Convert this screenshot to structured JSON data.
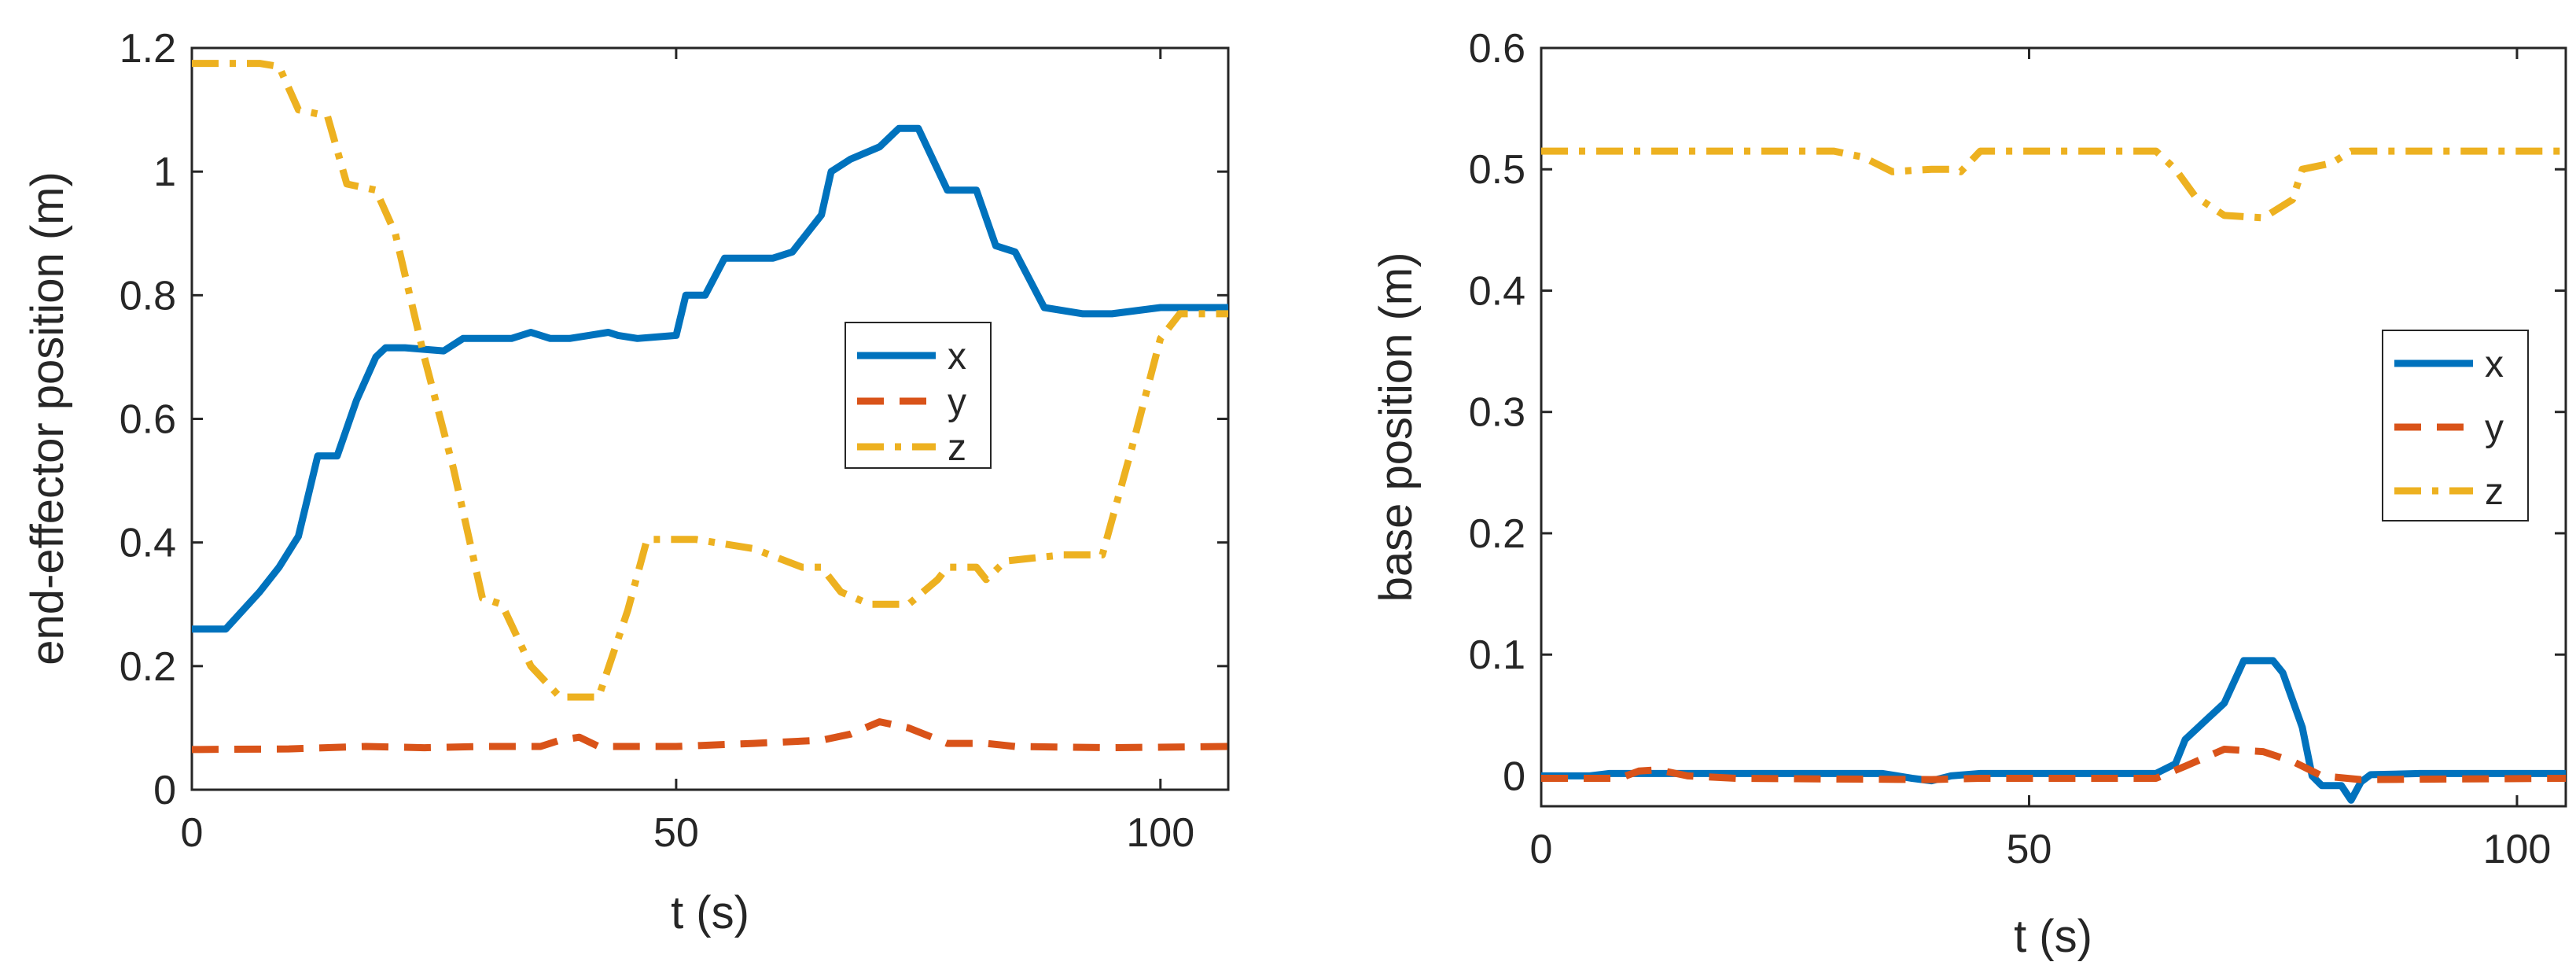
{
  "chart_data": [
    {
      "id": "left",
      "type": "line",
      "xlabel": "t (s)",
      "ylabel": "end-effector position (m)",
      "xlim": [
        0,
        107
      ],
      "ylim": [
        0,
        1.2
      ],
      "xticks": [
        0,
        50,
        100
      ],
      "xtick_labels": [
        "0",
        "50",
        "100"
      ],
      "yticks": [
        0,
        0.2,
        0.4,
        0.6,
        0.8,
        1,
        1.2
      ],
      "ytick_labels": [
        "0",
        "0.2",
        "0.4",
        "0.6",
        "0.8",
        "1",
        "1.2"
      ],
      "legend_position": "center-right",
      "series": [
        {
          "name": "x",
          "color": "#0072BD",
          "dash": "solid",
          "points": [
            [
              0,
              0.26
            ],
            [
              3.5,
              0.26
            ],
            [
              7,
              0.32
            ],
            [
              9,
              0.36
            ],
            [
              11,
              0.41
            ],
            [
              13,
              0.54
            ],
            [
              15,
              0.54
            ],
            [
              17,
              0.63
            ],
            [
              19,
              0.7
            ],
            [
              20,
              0.715
            ],
            [
              22,
              0.715
            ],
            [
              26,
              0.71
            ],
            [
              28,
              0.73
            ],
            [
              33,
              0.73
            ],
            [
              35,
              0.74
            ],
            [
              37,
              0.73
            ],
            [
              39,
              0.73
            ],
            [
              41,
              0.735
            ],
            [
              43,
              0.74
            ],
            [
              44,
              0.735
            ],
            [
              46,
              0.73
            ],
            [
              50,
              0.735
            ],
            [
              51,
              0.8
            ],
            [
              53,
              0.8
            ],
            [
              55,
              0.86
            ],
            [
              60,
              0.86
            ],
            [
              62,
              0.87
            ],
            [
              65,
              0.93
            ],
            [
              66,
              1.0
            ],
            [
              68,
              1.02
            ],
            [
              71,
              1.04
            ],
            [
              73,
              1.07
            ],
            [
              75,
              1.07
            ],
            [
              78,
              0.97
            ],
            [
              81,
              0.97
            ],
            [
              83,
              0.88
            ],
            [
              85,
              0.87
            ],
            [
              88,
              0.78
            ],
            [
              92,
              0.77
            ],
            [
              95,
              0.77
            ],
            [
              100,
              0.78
            ],
            [
              107,
              0.78
            ]
          ]
        },
        {
          "name": "y",
          "color": "#D95319",
          "dash": "dashed",
          "points": [
            [
              0,
              0.065
            ],
            [
              10,
              0.066
            ],
            [
              18,
              0.07
            ],
            [
              24,
              0.068
            ],
            [
              30,
              0.07
            ],
            [
              36,
              0.07
            ],
            [
              38,
              0.08
            ],
            [
              40,
              0.085
            ],
            [
              42,
              0.07
            ],
            [
              50,
              0.07
            ],
            [
              58,
              0.075
            ],
            [
              65,
              0.08
            ],
            [
              68,
              0.09
            ],
            [
              71,
              0.11
            ],
            [
              74,
              0.1
            ],
            [
              78,
              0.075
            ],
            [
              82,
              0.075
            ],
            [
              85,
              0.07
            ],
            [
              95,
              0.068
            ],
            [
              107,
              0.07
            ]
          ]
        },
        {
          "name": "z",
          "color": "#EDB120",
          "dash": "dashdot",
          "points": [
            [
              0,
              1.175
            ],
            [
              7,
              1.175
            ],
            [
              9,
              1.17
            ],
            [
              11,
              1.1
            ],
            [
              14,
              1.09
            ],
            [
              16,
              0.98
            ],
            [
              19,
              0.97
            ],
            [
              21,
              0.9
            ],
            [
              24,
              0.7
            ],
            [
              27,
              0.52
            ],
            [
              30,
              0.31
            ],
            [
              32,
              0.3
            ],
            [
              35,
              0.2
            ],
            [
              38,
              0.15
            ],
            [
              42,
              0.15
            ],
            [
              45,
              0.29
            ],
            [
              47,
              0.405
            ],
            [
              52,
              0.405
            ],
            [
              58,
              0.39
            ],
            [
              63,
              0.36
            ],
            [
              65,
              0.36
            ],
            [
              67,
              0.32
            ],
            [
              70,
              0.3
            ],
            [
              74,
              0.3
            ],
            [
              77,
              0.34
            ],
            [
              78,
              0.36
            ],
            [
              81,
              0.36
            ],
            [
              82,
              0.34
            ],
            [
              84,
              0.37
            ],
            [
              90,
              0.38
            ],
            [
              94,
              0.38
            ],
            [
              97,
              0.55
            ],
            [
              100,
              0.73
            ],
            [
              102,
              0.77
            ],
            [
              107,
              0.77
            ]
          ]
        }
      ]
    },
    {
      "id": "right",
      "type": "line",
      "xlabel": "t (s)",
      "ylabel": "base position (m)",
      "xlim": [
        0,
        105
      ],
      "ylim": [
        -0.025,
        0.6
      ],
      "xticks": [
        0,
        50,
        100
      ],
      "xtick_labels": [
        "0",
        "50",
        "100"
      ],
      "yticks": [
        0,
        0.1,
        0.2,
        0.3,
        0.4,
        0.5,
        0.6
      ],
      "ytick_labels": [
        "0",
        "0.1",
        "0.2",
        "0.3",
        "0.4",
        "0.5",
        "0.6"
      ],
      "legend_position": "center-right",
      "series": [
        {
          "name": "x",
          "color": "#0072BD",
          "dash": "solid",
          "points": [
            [
              0,
              0.0
            ],
            [
              5,
              0.0
            ],
            [
              7,
              0.002
            ],
            [
              10,
              0.002
            ],
            [
              20,
              0.002
            ],
            [
              30,
              0.002
            ],
            [
              35,
              0.002
            ],
            [
              38,
              -0.002
            ],
            [
              40,
              -0.004
            ],
            [
              42,
              0.0
            ],
            [
              45,
              0.002
            ],
            [
              60,
              0.002
            ],
            [
              63,
              0.002
            ],
            [
              65,
              0.01
            ],
            [
              66,
              0.03
            ],
            [
              68,
              0.045
            ],
            [
              70,
              0.06
            ],
            [
              72,
              0.095
            ],
            [
              75,
              0.095
            ],
            [
              76,
              0.085
            ],
            [
              78,
              0.04
            ],
            [
              79,
              0.0
            ],
            [
              80,
              -0.008
            ],
            [
              82,
              -0.008
            ],
            [
              83,
              -0.02
            ],
            [
              84,
              -0.005
            ],
            [
              85,
              0.001
            ],
            [
              90,
              0.002
            ],
            [
              105,
              0.002
            ]
          ]
        },
        {
          "name": "y",
          "color": "#D95319",
          "dash": "dashed",
          "points": [
            [
              0,
              -0.002
            ],
            [
              8,
              -0.002
            ],
            [
              10,
              0.004
            ],
            [
              12,
              0.005
            ],
            [
              15,
              0.0
            ],
            [
              20,
              -0.002
            ],
            [
              40,
              -0.003
            ],
            [
              45,
              -0.002
            ],
            [
              63,
              -0.002
            ],
            [
              66,
              0.008
            ],
            [
              70,
              0.022
            ],
            [
              74,
              0.02
            ],
            [
              77,
              0.012
            ],
            [
              80,
              0.0
            ],
            [
              84,
              -0.003
            ],
            [
              105,
              -0.002
            ]
          ]
        },
        {
          "name": "z",
          "color": "#EDB120",
          "dash": "dashdot",
          "points": [
            [
              0,
              0.515
            ],
            [
              30,
              0.515
            ],
            [
              33,
              0.51
            ],
            [
              36,
              0.498
            ],
            [
              40,
              0.5
            ],
            [
              42,
              0.5
            ],
            [
              43,
              0.498
            ],
            [
              45,
              0.515
            ],
            [
              63,
              0.515
            ],
            [
              65,
              0.5
            ],
            [
              67,
              0.478
            ],
            [
              70,
              0.462
            ],
            [
              74,
              0.46
            ],
            [
              77,
              0.475
            ],
            [
              78,
              0.5
            ],
            [
              81,
              0.505
            ],
            [
              83,
              0.515
            ],
            [
              105,
              0.515
            ]
          ]
        }
      ]
    }
  ]
}
